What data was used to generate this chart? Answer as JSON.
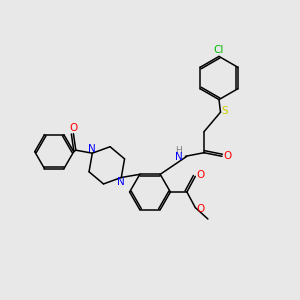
{
  "background_color": "#e8e8e8",
  "atom_colors": {
    "C": "#000000",
    "H": "#808080",
    "N": "#0000ff",
    "O": "#ff0000",
    "S": "#cccc00",
    "Cl": "#00bb00"
  },
  "figsize": [
    3.0,
    3.0
  ],
  "dpi": 100
}
